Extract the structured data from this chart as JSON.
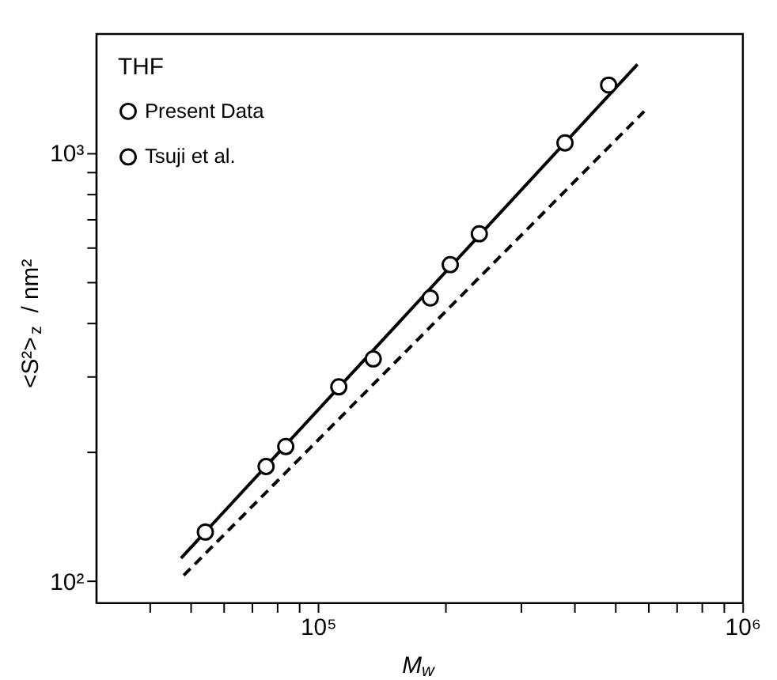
{
  "chart_data": {
    "type": "scatter",
    "legend_title": "THF",
    "xlabel": "M$_{w}$",
    "ylabel": "<S²>$_{z}$ / nm²",
    "log": "xy",
    "grid": false,
    "legend": "top left",
    "xlim": [
      30000,
      1000000
    ],
    "ylim": [
      89,
      1900
    ],
    "xticks": [
      {
        "value": 40000,
        "label": null
      },
      {
        "value": 50000,
        "label": null
      },
      {
        "value": 60000,
        "label": null
      },
      {
        "value": 70000,
        "label": null
      },
      {
        "value": 80000,
        "label": null
      },
      {
        "value": 90000,
        "label": null
      },
      {
        "value": 100000,
        "label": "10⁵"
      },
      {
        "value": 200000,
        "label": null
      },
      {
        "value": 300000,
        "label": null
      },
      {
        "value": 400000,
        "label": null
      },
      {
        "value": 500000,
        "label": null
      },
      {
        "value": 600000,
        "label": null
      },
      {
        "value": 700000,
        "label": null
      },
      {
        "value": 800000,
        "label": null
      },
      {
        "value": 900000,
        "label": null
      },
      {
        "value": 1000000,
        "label": "10⁶"
      }
    ],
    "yticks": [
      {
        "value": 100,
        "label": "10²"
      },
      {
        "value": 200,
        "label": null
      },
      {
        "value": 300,
        "label": null
      },
      {
        "value": 400,
        "label": null
      },
      {
        "value": 500,
        "label": null
      },
      {
        "value": 600,
        "label": null
      },
      {
        "value": 700,
        "label": null
      },
      {
        "value": 800,
        "label": null
      },
      {
        "value": 900,
        "label": null
      },
      {
        "value": 1000,
        "label": "10³"
      }
    ],
    "series": [
      {
        "name": "Present Data",
        "marker": "circle",
        "color": "#000000",
        "x": [
          205000,
          135000,
          75500,
          54300
        ],
        "values": [
          548,
          330,
          185,
          130
        ]
      },
      {
        "name": "Tsuji et al.",
        "marker": "circle",
        "color": "#000000",
        "x": [
          484000,
          382000,
          240000,
          184000,
          112000,
          84000
        ],
        "values": [
          1440,
          1055,
          647,
          458,
          284,
          206
        ]
      },
      {
        "type": "line",
        "line_style": "solid",
        "color": "#000000",
        "x": [
          47600,
          566000
        ],
        "values": [
          113,
          1610
        ]
      },
      {
        "type": "line",
        "line_style": "dashed",
        "color": "#000000",
        "x": [
          48300,
          587000
        ],
        "values": [
          103,
          1250
        ]
      }
    ]
  }
}
